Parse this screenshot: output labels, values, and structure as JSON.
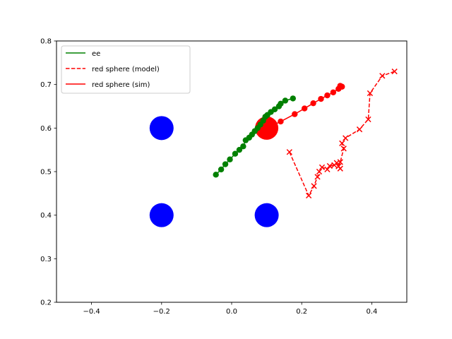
{
  "chart_data": {
    "type": "scatter",
    "title": "",
    "xlabel": "",
    "ylabel": "",
    "xlim": [
      -0.5,
      0.5
    ],
    "ylim": [
      0.2,
      0.8
    ],
    "grid": false,
    "legend_placement": "top-left",
    "xticks": [
      -0.4,
      -0.2,
      0.0,
      0.2,
      0.4
    ],
    "yticks": [
      0.2,
      0.3,
      0.4,
      0.5,
      0.6,
      0.7,
      0.8
    ],
    "xtick_labels": [
      "−0.4",
      "−0.2",
      "0.0",
      "0.2",
      "0.4"
    ],
    "ytick_labels": [
      "0.2",
      "0.3",
      "0.4",
      "0.5",
      "0.6",
      "0.7",
      "0.8"
    ],
    "obstacles": {
      "color": "#0000ff",
      "points": [
        {
          "x": -0.2,
          "y": 0.6
        },
        {
          "x": -0.2,
          "y": 0.4
        },
        {
          "x": 0.1,
          "y": 0.4
        }
      ]
    },
    "target": {
      "x": 0.1,
      "y": 0.6,
      "color": "#ff0000"
    },
    "series": [
      {
        "name": "ee",
        "color": "#008000",
        "line": "solid",
        "marker": "circle",
        "x": [
          -0.045,
          -0.03,
          -0.018,
          -0.005,
          0.01,
          0.022,
          0.033,
          0.04,
          0.05,
          0.058,
          0.066,
          0.074,
          0.082,
          0.09,
          0.096,
          0.102,
          0.112,
          0.123,
          0.135,
          0.14,
          0.153,
          0.175
        ],
        "y": [
          0.493,
          0.505,
          0.517,
          0.528,
          0.541,
          0.55,
          0.558,
          0.572,
          0.578,
          0.585,
          0.593,
          0.6,
          0.608,
          0.617,
          0.626,
          0.63,
          0.637,
          0.643,
          0.65,
          0.656,
          0.663,
          0.668
        ]
      },
      {
        "name": "red sphere (model)",
        "color": "#ff0000",
        "line": "dashed",
        "marker": "x",
        "x": [
          0.465,
          0.43,
          0.395,
          0.39,
          0.365,
          0.325,
          0.315,
          0.32,
          0.31,
          0.305,
          0.31,
          0.3,
          0.293,
          0.28,
          0.273,
          0.258,
          0.25,
          0.245,
          0.235,
          0.22,
          0.165
        ],
        "y": [
          0.73,
          0.72,
          0.68,
          0.62,
          0.597,
          0.577,
          0.565,
          0.553,
          0.522,
          0.512,
          0.507,
          0.52,
          0.515,
          0.513,
          0.505,
          0.51,
          0.5,
          0.488,
          0.467,
          0.445,
          0.545
        ]
      },
      {
        "name": "red sphere (sim)",
        "color": "#ff0000",
        "line": "solid",
        "marker": "circle",
        "x": [
          0.1,
          0.14,
          0.18,
          0.208,
          0.233,
          0.255,
          0.273,
          0.29,
          0.305,
          0.31,
          0.315
        ],
        "y": [
          0.6,
          0.615,
          0.632,
          0.645,
          0.657,
          0.667,
          0.675,
          0.682,
          0.69,
          0.697,
          0.695
        ]
      }
    ]
  }
}
